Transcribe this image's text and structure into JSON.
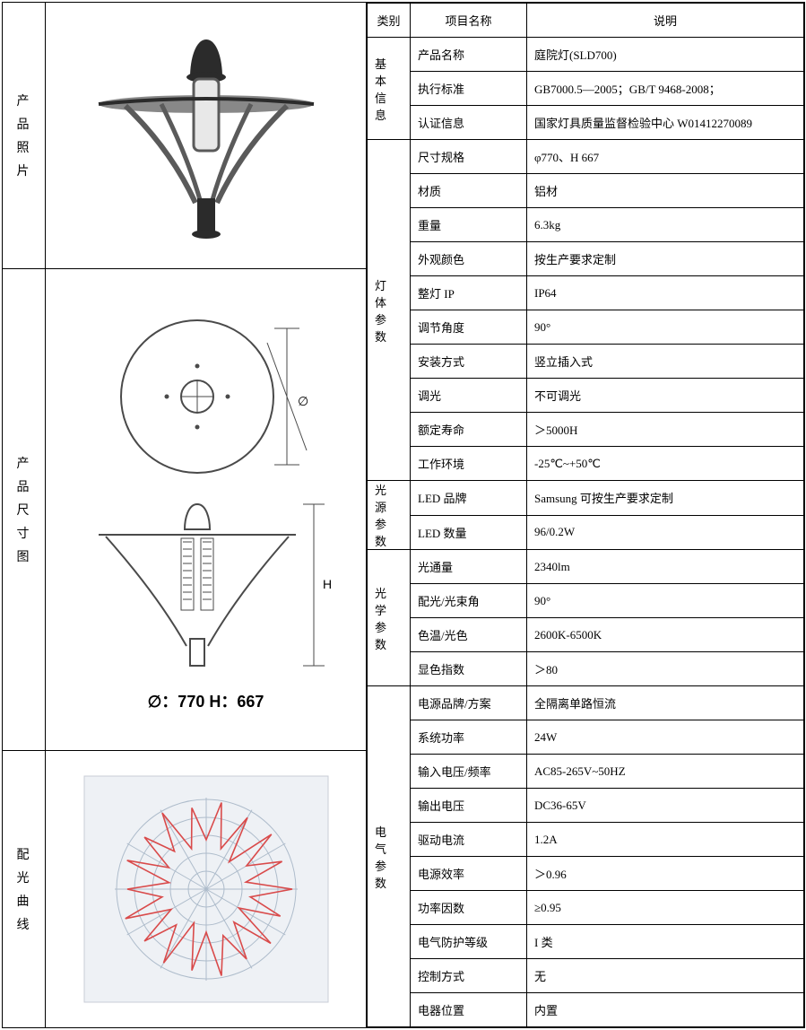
{
  "left_labels": {
    "photo": [
      "产",
      "品",
      "照",
      "片"
    ],
    "dims": [
      "产",
      "品",
      "尺",
      "寸",
      "图"
    ],
    "curve": [
      "配",
      "光",
      "曲",
      "线"
    ]
  },
  "header": {
    "cat": "类别",
    "name": "项目名称",
    "desc": "说明"
  },
  "groups": [
    {
      "cat": "基本信息",
      "rows": [
        {
          "name": "产品名称",
          "desc": "庭院灯(SLD700)"
        },
        {
          "name": "执行标准",
          "desc": "GB7000.5—2005；GB/T 9468-2008；"
        },
        {
          "name": "认证信息",
          "desc": "国家灯具质量监督检验中心 W01412270089"
        }
      ]
    },
    {
      "cat": "灯体参数",
      "rows": [
        {
          "name": "尺寸规格",
          "desc": "φ770、H 667"
        },
        {
          "name": "材质",
          "desc": "铝材"
        },
        {
          "name": "重量",
          "desc": "6.3kg"
        },
        {
          "name": "外观颜色",
          "desc": "按生产要求定制"
        },
        {
          "name": "整灯 IP",
          "desc": "IP64"
        },
        {
          "name": "调节角度",
          "desc": "90°"
        },
        {
          "name": "安装方式",
          "desc": "竖立插入式"
        },
        {
          "name": "调光",
          "desc": "不可调光"
        },
        {
          "name": "额定寿命",
          "desc": "＞5000H"
        },
        {
          "name": "工作环境",
          "desc": "-25℃~+50℃"
        }
      ]
    },
    {
      "cat": "光源参数",
      "rows": [
        {
          "name": "LED 品牌",
          "desc": "Samsung 可按生产要求定制"
        },
        {
          "name": "LED 数量",
          "desc": "96/0.2W"
        }
      ]
    },
    {
      "cat": "光学参数",
      "rows": [
        {
          "name": "光通量",
          "desc": "2340lm"
        },
        {
          "name": "配光/光束角",
          "desc": "90°"
        },
        {
          "name": "色温/光色",
          "desc": "2600K-6500K"
        },
        {
          "name": "显色指数",
          "desc": "＞80"
        }
      ]
    },
    {
      "cat": "电气参数",
      "rows": [
        {
          "name": "电源品牌/方案",
          "desc": "全隔离单路恒流"
        },
        {
          "name": "系统功率",
          "desc": "24W"
        },
        {
          "name": "输入电压/频率",
          "desc": "AC85-265V~50HZ"
        },
        {
          "name": "输出电压",
          "desc": "DC36-65V"
        },
        {
          "name": "驱动电流",
          "desc": "1.2A"
        },
        {
          "name": "电源效率",
          "desc": "＞0.96"
        },
        {
          "name": "功率因数",
          "desc": "≥0.95"
        },
        {
          "name": "电气防护等级",
          "desc": "I 类"
        },
        {
          "name": "控制方式",
          "desc": "无"
        },
        {
          "name": "电器位置",
          "desc": "内置"
        }
      ]
    }
  ],
  "dims_caption": "∅：770  H：667",
  "diagrams": {
    "lamp_photo_colors": {
      "body": "#5a5a5a",
      "glass": "#e8e8e8",
      "dark": "#2b2b2b",
      "rim": "#888"
    },
    "topview": {
      "stroke": "#4a4a4a",
      "label": "∅"
    },
    "sideview": {
      "stroke": "#4a4a4a",
      "label": "H"
    },
    "polar": {
      "ring_color": "#aebccb",
      "bg": "#eef1f5",
      "curve_color": "#d94a4a",
      "rings": [
        20,
        40,
        60,
        80,
        100
      ],
      "curve_r": [
        55,
        98,
        48,
        92,
        40,
        95,
        52,
        90,
        45,
        96,
        50,
        88,
        42,
        94,
        48,
        90,
        55,
        98,
        48,
        92,
        40,
        95,
        52,
        90,
        45,
        96,
        50,
        88,
        42,
        94,
        48,
        90,
        55,
        98,
        48,
        92
      ]
    }
  }
}
